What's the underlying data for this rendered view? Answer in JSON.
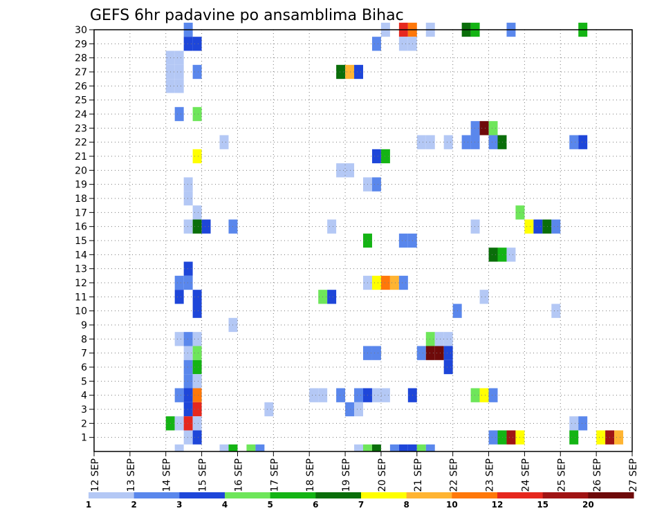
{
  "chart_data": {
    "type": "heatmap",
    "title": "GEFS 6hr padavine po ansamblima Bihac",
    "xlabel": "",
    "ylabel": "",
    "x_tick_labels": [
      "12 SEP",
      "13 SEP",
      "14 SEP",
      "15 SEP",
      "16 SEP",
      "17 SEP",
      "18 SEP",
      "19 SEP",
      "20 SEP",
      "21 SEP",
      "22 SEP",
      "23 SEP",
      "24 SEP",
      "25 SEP",
      "26 SEP",
      "27 SEP"
    ],
    "xlim_days": [
      12,
      27
    ],
    "y_tick_labels": [
      "1",
      "2",
      "3",
      "4",
      "5",
      "6",
      "7",
      "8",
      "9",
      "10",
      "11",
      "12",
      "13",
      "14",
      "15",
      "16",
      "17",
      "18",
      "19",
      "20",
      "21",
      "22",
      "23",
      "24",
      "25",
      "26",
      "27",
      "28",
      "29",
      "30"
    ],
    "ylim": [
      0,
      30
    ],
    "time_step_hours": 6,
    "grid": true,
    "colorbar": {
      "orientation": "horizontal",
      "position": "bottom",
      "labels": [
        "1",
        "2",
        "3",
        "4",
        "5",
        "6",
        "7",
        "8",
        "10",
        "12",
        "15",
        "20"
      ],
      "colors": [
        "#b4c8f5",
        "#5a87ec",
        "#1e46d9",
        "#6ee65a",
        "#14b414",
        "#0a6e0a",
        "#ffff00",
        "#ffb432",
        "#ff780a",
        "#e6281e",
        "#a01414",
        "#6e0a0a"
      ]
    },
    "cells": [
      {
        "member": 30,
        "day": 14.5,
        "bin": 2
      },
      {
        "member": 30,
        "day": 20,
        "bin": 1
      },
      {
        "member": 30,
        "day": 20.5,
        "bin": 10
      },
      {
        "member": 30,
        "day": 20.75,
        "bin": 9
      },
      {
        "member": 30,
        "day": 21.25,
        "bin": 1
      },
      {
        "member": 30,
        "day": 22.25,
        "bin": 6
      },
      {
        "member": 30,
        "day": 22.5,
        "bin": 5
      },
      {
        "member": 30,
        "day": 23.5,
        "bin": 2
      },
      {
        "member": 30,
        "day": 25.5,
        "bin": 5
      },
      {
        "member": 29,
        "day": 14.5,
        "bin": 3
      },
      {
        "member": 29,
        "day": 14.75,
        "bin": 3
      },
      {
        "member": 29,
        "day": 19.75,
        "bin": 2
      },
      {
        "member": 29,
        "day": 20.5,
        "bin": 1
      },
      {
        "member": 29,
        "day": 20.75,
        "bin": 1
      },
      {
        "member": 28,
        "day": 14,
        "bin": 1
      },
      {
        "member": 28,
        "day": 14.25,
        "bin": 1
      },
      {
        "member": 27,
        "day": 14,
        "bin": 1
      },
      {
        "member": 27,
        "day": 14.25,
        "bin": 1
      },
      {
        "member": 27,
        "day": 14.75,
        "bin": 2
      },
      {
        "member": 27,
        "day": 18.75,
        "bin": 6
      },
      {
        "member": 27,
        "day": 19,
        "bin": 8
      },
      {
        "member": 27,
        "day": 19.25,
        "bin": 3
      },
      {
        "member": 26,
        "day": 14,
        "bin": 1
      },
      {
        "member": 26,
        "day": 14.25,
        "bin": 1
      },
      {
        "member": 24,
        "day": 14.25,
        "bin": 2
      },
      {
        "member": 24,
        "day": 14.75,
        "bin": 4
      },
      {
        "member": 23,
        "day": 22.5,
        "bin": 2
      },
      {
        "member": 23,
        "day": 22.75,
        "bin": 12
      },
      {
        "member": 23,
        "day": 23,
        "bin": 4
      },
      {
        "member": 22,
        "day": 15.5,
        "bin": 1
      },
      {
        "member": 22,
        "day": 21,
        "bin": 1
      },
      {
        "member": 22,
        "day": 21.25,
        "bin": 1
      },
      {
        "member": 22,
        "day": 21.75,
        "bin": 1
      },
      {
        "member": 22,
        "day": 22.25,
        "bin": 2
      },
      {
        "member": 22,
        "day": 22.5,
        "bin": 2
      },
      {
        "member": 22,
        "day": 23,
        "bin": 2
      },
      {
        "member": 22,
        "day": 23.25,
        "bin": 6
      },
      {
        "member": 22,
        "day": 25.25,
        "bin": 2
      },
      {
        "member": 22,
        "day": 25.5,
        "bin": 3
      },
      {
        "member": 21,
        "day": 14.75,
        "bin": 7
      },
      {
        "member": 21,
        "day": 19.75,
        "bin": 3
      },
      {
        "member": 21,
        "day": 20,
        "bin": 5
      },
      {
        "member": 20,
        "day": 18.75,
        "bin": 1
      },
      {
        "member": 20,
        "day": 19,
        "bin": 1
      },
      {
        "member": 19,
        "day": 14.5,
        "bin": 1
      },
      {
        "member": 19,
        "day": 19.5,
        "bin": 1
      },
      {
        "member": 19,
        "day": 19.75,
        "bin": 2
      },
      {
        "member": 18,
        "day": 14.5,
        "bin": 1
      },
      {
        "member": 17,
        "day": 14.75,
        "bin": 1
      },
      {
        "member": 17,
        "day": 23.75,
        "bin": 4
      },
      {
        "member": 16,
        "day": 14.5,
        "bin": 1
      },
      {
        "member": 16,
        "day": 14.75,
        "bin": 6
      },
      {
        "member": 16,
        "day": 15,
        "bin": 3
      },
      {
        "member": 16,
        "day": 15.75,
        "bin": 2
      },
      {
        "member": 16,
        "day": 18.5,
        "bin": 1
      },
      {
        "member": 16,
        "day": 22.5,
        "bin": 1
      },
      {
        "member": 16,
        "day": 24,
        "bin": 7
      },
      {
        "member": 16,
        "day": 24.25,
        "bin": 3
      },
      {
        "member": 16,
        "day": 24.5,
        "bin": 6
      },
      {
        "member": 16,
        "day": 24.75,
        "bin": 2
      },
      {
        "member": 15,
        "day": 19.5,
        "bin": 5
      },
      {
        "member": 15,
        "day": 20.5,
        "bin": 2
      },
      {
        "member": 15,
        "day": 20.75,
        "bin": 2
      },
      {
        "member": 14,
        "day": 23,
        "bin": 6
      },
      {
        "member": 14,
        "day": 23.25,
        "bin": 5
      },
      {
        "member": 14,
        "day": 23.5,
        "bin": 1
      },
      {
        "member": 13,
        "day": 14.5,
        "bin": 3
      },
      {
        "member": 12,
        "day": 14.25,
        "bin": 2
      },
      {
        "member": 12,
        "day": 14.5,
        "bin": 2
      },
      {
        "member": 12,
        "day": 19.5,
        "bin": 1
      },
      {
        "member": 12,
        "day": 19.75,
        "bin": 7
      },
      {
        "member": 12,
        "day": 20,
        "bin": 9
      },
      {
        "member": 12,
        "day": 20.25,
        "bin": 8
      },
      {
        "member": 12,
        "day": 20.5,
        "bin": 2
      },
      {
        "member": 11,
        "day": 14.25,
        "bin": 3
      },
      {
        "member": 11,
        "day": 14.75,
        "bin": 3
      },
      {
        "member": 11,
        "day": 18.25,
        "bin": 4
      },
      {
        "member": 11,
        "day": 18.5,
        "bin": 3
      },
      {
        "member": 11,
        "day": 22.75,
        "bin": 1
      },
      {
        "member": 10,
        "day": 14.75,
        "bin": 3
      },
      {
        "member": 10,
        "day": 22,
        "bin": 2
      },
      {
        "member": 10,
        "day": 24.75,
        "bin": 1
      },
      {
        "member": 9,
        "day": 15.75,
        "bin": 1
      },
      {
        "member": 8,
        "day": 14.25,
        "bin": 1
      },
      {
        "member": 8,
        "day": 14.5,
        "bin": 2
      },
      {
        "member": 8,
        "day": 14.75,
        "bin": 1
      },
      {
        "member": 8,
        "day": 21.25,
        "bin": 4
      },
      {
        "member": 8,
        "day": 21.5,
        "bin": 1
      },
      {
        "member": 8,
        "day": 21.75,
        "bin": 1
      },
      {
        "member": 7,
        "day": 14.5,
        "bin": 1
      },
      {
        "member": 7,
        "day": 14.75,
        "bin": 4
      },
      {
        "member": 7,
        "day": 19.5,
        "bin": 2
      },
      {
        "member": 7,
        "day": 19.75,
        "bin": 2
      },
      {
        "member": 7,
        "day": 21,
        "bin": 2
      },
      {
        "member": 7,
        "day": 21.25,
        "bin": 12
      },
      {
        "member": 7,
        "day": 21.5,
        "bin": 12
      },
      {
        "member": 7,
        "day": 21.75,
        "bin": 3
      },
      {
        "member": 6,
        "day": 14.5,
        "bin": 2
      },
      {
        "member": 6,
        "day": 14.75,
        "bin": 5
      },
      {
        "member": 6,
        "day": 21.75,
        "bin": 3
      },
      {
        "member": 5,
        "day": 14.5,
        "bin": 2
      },
      {
        "member": 5,
        "day": 14.75,
        "bin": 1
      },
      {
        "member": 4,
        "day": 14.25,
        "bin": 2
      },
      {
        "member": 4,
        "day": 14.5,
        "bin": 3
      },
      {
        "member": 4,
        "day": 14.75,
        "bin": 9
      },
      {
        "member": 4,
        "day": 18,
        "bin": 1
      },
      {
        "member": 4,
        "day": 18.25,
        "bin": 1
      },
      {
        "member": 4,
        "day": 18.75,
        "bin": 2
      },
      {
        "member": 4,
        "day": 19.25,
        "bin": 2
      },
      {
        "member": 4,
        "day": 19.5,
        "bin": 3
      },
      {
        "member": 4,
        "day": 19.75,
        "bin": 1
      },
      {
        "member": 4,
        "day": 20,
        "bin": 1
      },
      {
        "member": 4,
        "day": 20.75,
        "bin": 3
      },
      {
        "member": 4,
        "day": 22.5,
        "bin": 4
      },
      {
        "member": 4,
        "day": 22.75,
        "bin": 7
      },
      {
        "member": 4,
        "day": 23,
        "bin": 2
      },
      {
        "member": 3,
        "day": 14.5,
        "bin": 3
      },
      {
        "member": 3,
        "day": 14.75,
        "bin": 10
      },
      {
        "member": 3,
        "day": 16.75,
        "bin": 1
      },
      {
        "member": 3,
        "day": 19,
        "bin": 2
      },
      {
        "member": 3,
        "day": 19.25,
        "bin": 1
      },
      {
        "member": 2,
        "day": 14,
        "bin": 5
      },
      {
        "member": 2,
        "day": 14.25,
        "bin": 1
      },
      {
        "member": 2,
        "day": 14.5,
        "bin": 10
      },
      {
        "member": 2,
        "day": 14.75,
        "bin": 1
      },
      {
        "member": 2,
        "day": 25.25,
        "bin": 1
      },
      {
        "member": 2,
        "day": 25.5,
        "bin": 2
      },
      {
        "member": 1,
        "day": 14.5,
        "bin": 1
      },
      {
        "member": 1,
        "day": 14.75,
        "bin": 3
      },
      {
        "member": 1,
        "day": 23,
        "bin": 2
      },
      {
        "member": 1,
        "day": 23.25,
        "bin": 5
      },
      {
        "member": 1,
        "day": 23.5,
        "bin": 11
      },
      {
        "member": 1,
        "day": 23.75,
        "bin": 7
      },
      {
        "member": 1,
        "day": 25.25,
        "bin": 5
      },
      {
        "member": 1,
        "day": 26,
        "bin": 7
      },
      {
        "member": 1,
        "day": 26.25,
        "bin": 11
      },
      {
        "member": 1,
        "day": 26.5,
        "bin": 8
      },
      {
        "member": 0,
        "day": 14.25,
        "bin": 1
      },
      {
        "member": 0,
        "day": 15.5,
        "bin": 1
      },
      {
        "member": 0,
        "day": 15.75,
        "bin": 5
      },
      {
        "member": 0,
        "day": 16.25,
        "bin": 4
      },
      {
        "member": 0,
        "day": 16.5,
        "bin": 2
      },
      {
        "member": 0,
        "day": 19.25,
        "bin": 1
      },
      {
        "member": 0,
        "day": 19.5,
        "bin": 4
      },
      {
        "member": 0,
        "day": 19.75,
        "bin": 6
      },
      {
        "member": 0,
        "day": 20.25,
        "bin": 2
      },
      {
        "member": 0,
        "day": 20.5,
        "bin": 3
      },
      {
        "member": 0,
        "day": 20.75,
        "bin": 3
      },
      {
        "member": 0,
        "day": 21,
        "bin": 4
      },
      {
        "member": 0,
        "day": 21.25,
        "bin": 2
      }
    ]
  }
}
